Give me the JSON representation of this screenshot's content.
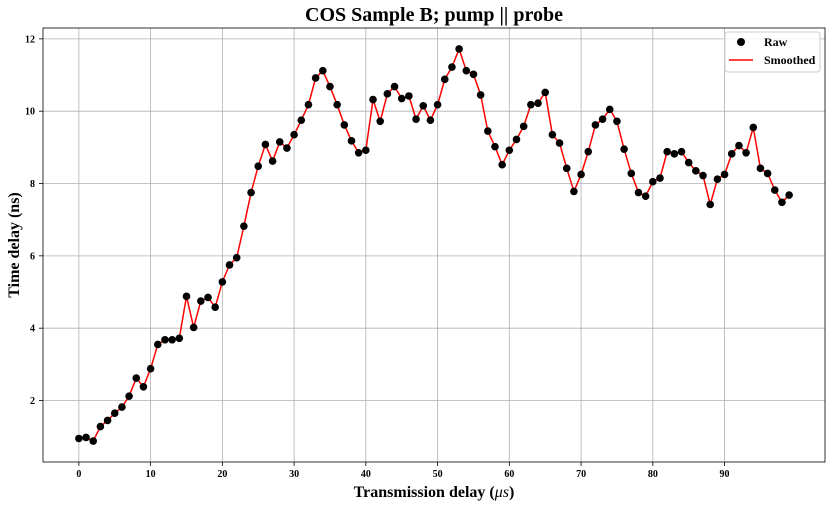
{
  "chart_data": {
    "type": "line",
    "title": "COS Sample B; pump || probe",
    "xlabel_main": "Transmission delay (",
    "xlabel_unit": "μs",
    "xlabel_close": ")",
    "ylabel": "Time delay (ns)",
    "xlim": [
      -5,
      104
    ],
    "ylim": [
      0.3,
      12.3
    ],
    "xticks": [
      0,
      10,
      20,
      30,
      40,
      50,
      60,
      70,
      80,
      90
    ],
    "yticks": [
      2,
      4,
      6,
      8,
      10,
      12
    ],
    "grid": true,
    "legend_position": "top-right",
    "colors": {
      "raw": "#000000",
      "smoothed": "#ff0000"
    },
    "series": [
      {
        "name": "Raw",
        "style": "scatter",
        "x": [
          0,
          1,
          2,
          3,
          4,
          5,
          6,
          7,
          8,
          9,
          10,
          11,
          12,
          13,
          14,
          15,
          16,
          17,
          18,
          19,
          20,
          21,
          22,
          23,
          24,
          25,
          26,
          27,
          28,
          29,
          30,
          31,
          32,
          33,
          34,
          35,
          36,
          37,
          38,
          39,
          40,
          41,
          42,
          43,
          44,
          45,
          46,
          47,
          48,
          49,
          50,
          51,
          52,
          53,
          54,
          55,
          56,
          57,
          58,
          59,
          60,
          61,
          62,
          63,
          64,
          65,
          66,
          67,
          68,
          69,
          70,
          71,
          72,
          73,
          74,
          75,
          76,
          77,
          78,
          79,
          80,
          81,
          82,
          83,
          84,
          85,
          86,
          87,
          88,
          89,
          90,
          91,
          92,
          93,
          94,
          95,
          96,
          97,
          98,
          99
        ],
        "y": [
          0.95,
          0.98,
          0.88,
          1.28,
          1.45,
          1.65,
          1.82,
          2.12,
          2.62,
          2.38,
          2.88,
          3.55,
          3.68,
          3.68,
          3.72,
          4.88,
          4.02,
          4.75,
          4.85,
          4.58,
          5.28,
          5.75,
          5.95,
          6.82,
          7.75,
          8.48,
          9.08,
          8.62,
          9.15,
          8.98,
          9.35,
          9.75,
          10.18,
          10.92,
          11.12,
          10.68,
          10.18,
          9.62,
          9.18,
          8.85,
          8.92,
          10.32,
          9.72,
          10.48,
          10.68,
          10.35,
          10.42,
          9.78,
          10.15,
          9.75,
          10.18,
          10.88,
          11.22,
          11.72,
          11.12,
          11.02,
          10.45,
          9.45,
          9.02,
          8.52,
          8.92,
          9.22,
          9.58,
          10.18,
          10.22,
          10.52,
          9.35,
          9.12,
          8.42,
          7.78,
          8.25,
          8.88,
          9.62,
          9.78,
          10.05,
          9.72,
          8.95,
          8.28,
          7.75,
          7.65,
          8.05,
          8.15,
          8.88,
          8.82,
          8.88,
          8.58,
          8.35,
          8.22,
          7.42,
          8.12,
          8.25,
          8.82,
          9.05,
          8.85,
          9.55,
          8.42,
          8.28,
          7.82,
          7.48,
          7.68
        ]
      },
      {
        "name": "Smoothed",
        "style": "line",
        "x": [
          0,
          1,
          2,
          3,
          4,
          5,
          6,
          7,
          8,
          9,
          10,
          11,
          12,
          13,
          14,
          15,
          16,
          17,
          18,
          19,
          20,
          21,
          22,
          23,
          24,
          25,
          26,
          27,
          28,
          29,
          30,
          31,
          32,
          33,
          34,
          35,
          36,
          37,
          38,
          39,
          40,
          41,
          42,
          43,
          44,
          45,
          46,
          47,
          48,
          49,
          50,
          51,
          52,
          53,
          54,
          55,
          56,
          57,
          58,
          59,
          60,
          61,
          62,
          63,
          64,
          65,
          66,
          67,
          68,
          69,
          70,
          71,
          72,
          73,
          74,
          75,
          76,
          77,
          78,
          79,
          80,
          81,
          82,
          83,
          84,
          85,
          86,
          87,
          88,
          89,
          90,
          91,
          92,
          93,
          94,
          95,
          96,
          97,
          98,
          99
        ],
        "y": [
          0.95,
          0.98,
          0.88,
          1.28,
          1.45,
          1.65,
          1.82,
          2.12,
          2.62,
          2.38,
          2.88,
          3.55,
          3.68,
          3.68,
          3.72,
          4.88,
          4.02,
          4.75,
          4.85,
          4.58,
          5.28,
          5.75,
          5.95,
          6.82,
          7.75,
          8.48,
          9.08,
          8.62,
          9.15,
          8.98,
          9.35,
          9.75,
          10.18,
          10.92,
          11.12,
          10.68,
          10.18,
          9.62,
          9.18,
          8.85,
          8.92,
          10.32,
          9.72,
          10.48,
          10.68,
          10.35,
          10.42,
          9.78,
          10.15,
          9.75,
          10.18,
          10.88,
          11.22,
          11.72,
          11.12,
          11.02,
          10.45,
          9.45,
          9.02,
          8.52,
          8.92,
          9.22,
          9.58,
          10.18,
          10.22,
          10.52,
          9.35,
          9.12,
          8.42,
          7.78,
          8.25,
          8.88,
          9.62,
          9.78,
          10.05,
          9.72,
          8.95,
          8.28,
          7.75,
          7.65,
          8.05,
          8.15,
          8.88,
          8.82,
          8.88,
          8.58,
          8.35,
          8.22,
          7.42,
          8.12,
          8.25,
          8.82,
          9.05,
          8.85,
          9.55,
          8.42,
          8.28,
          7.82,
          7.48,
          7.68
        ]
      }
    ]
  }
}
